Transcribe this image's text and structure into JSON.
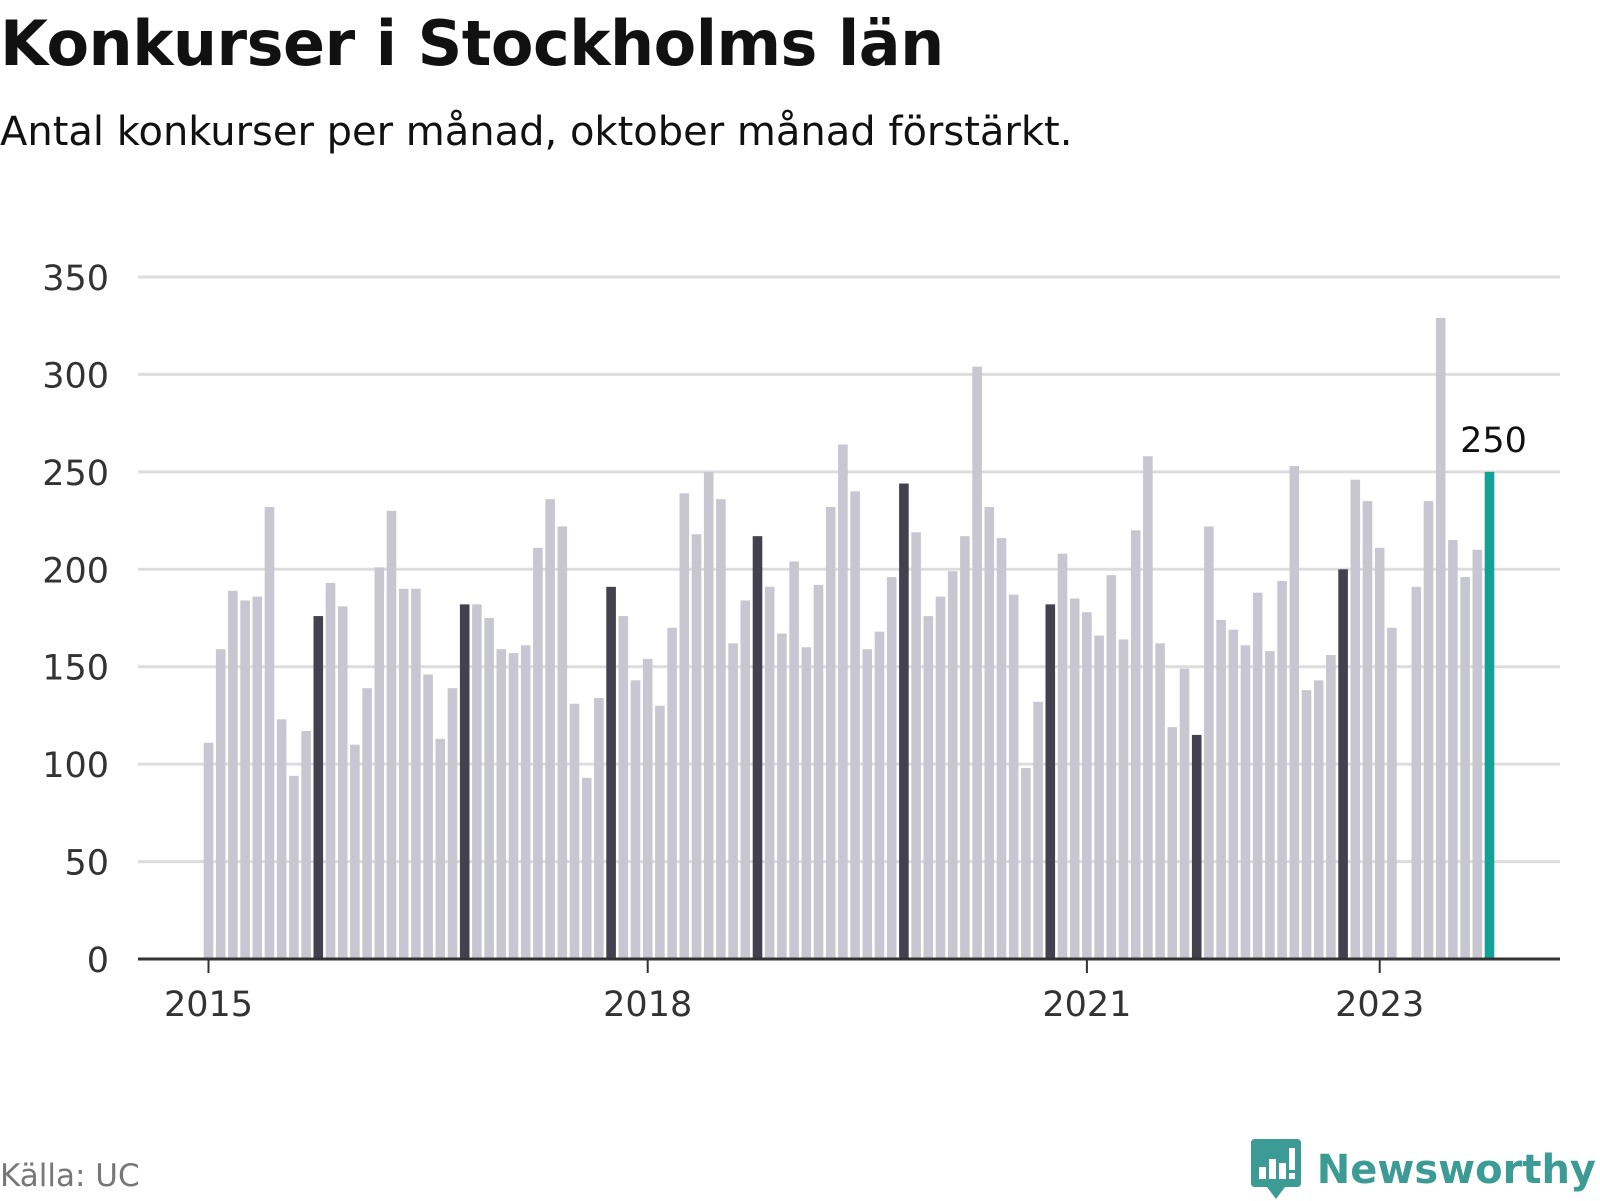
{
  "header": {
    "title": "Konkurser i Stockholms län",
    "subtitle": "Antal konkurser per månad, oktober månad förstärkt."
  },
  "footer": {
    "source": "Källa: UC",
    "brand": "Newsworthy"
  },
  "colors": {
    "bar": "#c8c7d1",
    "highlight": "#42414d",
    "latest": "#13a096",
    "grid": "#dddddd",
    "axis": "#333333",
    "brand": "#3d9b96"
  },
  "chart_data": {
    "type": "bar",
    "title": "Konkurser i Stockholms län",
    "subtitle": "Antal konkurser per månad, oktober månad förstärkt.",
    "ylim": [
      0,
      350
    ],
    "yticks": [
      0,
      50,
      100,
      150,
      200,
      250,
      300,
      350
    ],
    "xticks": [
      {
        "label": "2015",
        "month": "2015-01"
      },
      {
        "label": "2018",
        "month": "2018-01"
      },
      {
        "label": "2021",
        "month": "2021-01"
      },
      {
        "label": "2023",
        "month": "2023-01"
      }
    ],
    "grid": true,
    "highlight_month": 10,
    "latest_label": "250",
    "series": [
      {
        "start_month": "2015-01",
        "values": [
          111,
          159,
          189,
          184,
          186,
          232,
          123,
          94,
          117,
          176,
          193,
          181,
          110,
          139,
          201,
          230,
          190,
          190,
          146,
          113,
          139,
          182,
          182,
          175,
          159,
          157,
          161,
          211,
          236,
          222,
          131,
          93,
          134,
          191,
          176,
          143,
          154,
          130,
          170,
          239,
          218,
          250,
          236,
          162,
          184,
          217,
          191,
          167,
          204,
          160,
          192,
          232,
          264,
          240,
          159,
          168,
          196,
          244,
          219,
          176,
          186,
          199,
          217,
          304,
          232,
          216,
          187,
          98,
          132,
          182,
          208,
          185,
          178,
          166,
          197,
          164,
          220,
          258,
          162,
          119,
          149,
          115,
          222,
          174,
          169,
          161,
          188,
          158,
          194,
          253,
          138,
          143,
          156,
          200,
          246,
          235,
          211,
          170,
          0,
          191,
          235,
          329,
          215,
          196,
          210,
          250
        ]
      }
    ]
  }
}
